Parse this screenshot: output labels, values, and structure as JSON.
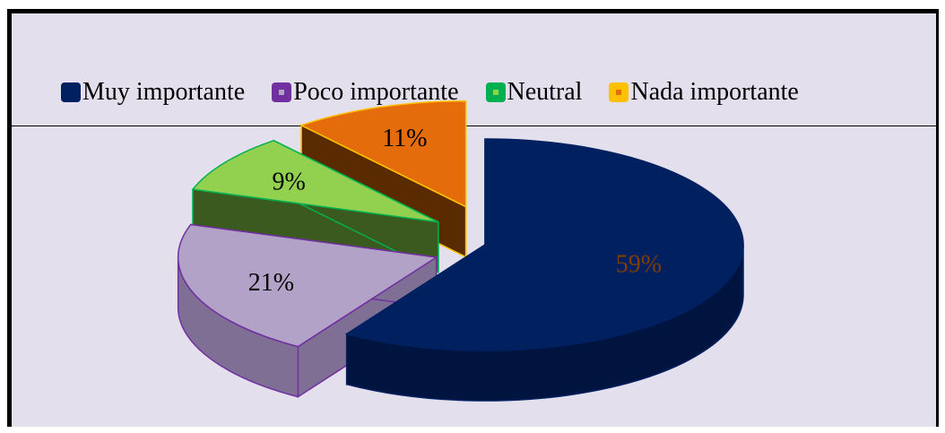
{
  "chart_data": {
    "type": "pie",
    "categories": [
      "Muy importante",
      "Poco importante",
      "Neutral",
      "Nada importante"
    ],
    "values": [
      59,
      21,
      9,
      11
    ],
    "labels": [
      "59%",
      "21%",
      "9%",
      "11%"
    ],
    "legend": "top"
  },
  "colors": {
    "background": "#e4dfec",
    "series": [
      {
        "top": "#002060",
        "side": "#001440",
        "outline": "#002060",
        "label": "#7f3f00"
      },
      {
        "top": "#b3a2c7",
        "side": "#7f6f95",
        "outline": "#7030a0",
        "label": "#000000"
      },
      {
        "top": "#92d050",
        "side": "#3b5a1f",
        "outline": "#00b050",
        "label": "#000000"
      },
      {
        "top": "#e46c0a",
        "side": "#5a2a00",
        "outline": "#ffc000",
        "label": "#000000"
      }
    ]
  }
}
